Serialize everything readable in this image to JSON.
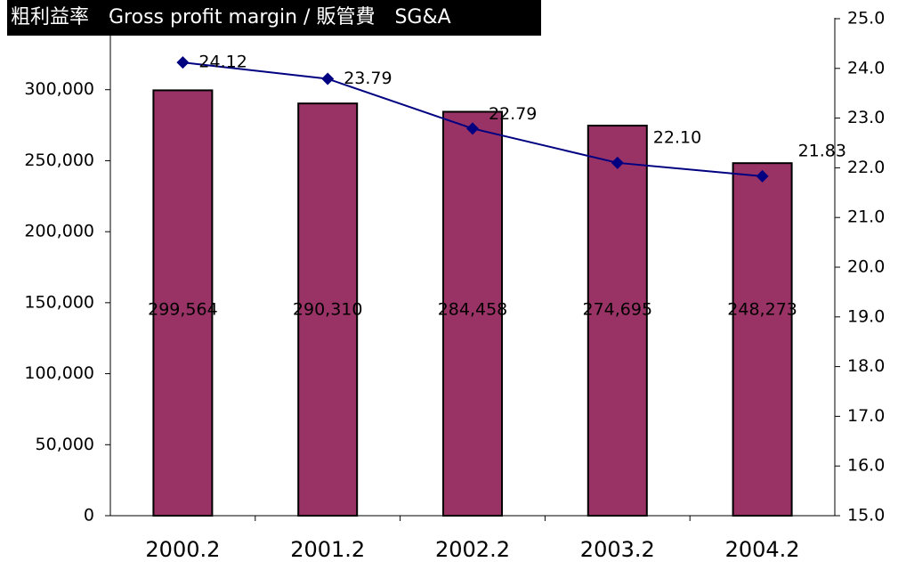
{
  "chart_data": {
    "type": "bar",
    "title": "粗利益率　Gross profit margin / 販管費　SG&A",
    "categories": [
      "2000.2",
      "2001.2",
      "2002.2",
      "2003.2",
      "2004.2"
    ],
    "series": [
      {
        "type": "bar",
        "color": "#993366",
        "values": [
          299564,
          290310,
          284458,
          274695,
          248273
        ],
        "value_labels": [
          "299,564",
          "290,310",
          "284,458",
          "274,695",
          "248,273"
        ]
      },
      {
        "type": "line",
        "axis": "y2",
        "color": "#000080",
        "values": [
          24.12,
          23.79,
          22.79,
          22.1,
          21.83
        ],
        "value_labels": [
          "24.12",
          "23.79",
          "22.79",
          "22.10",
          "21.83"
        ]
      }
    ],
    "ylim": [
      0,
      350000
    ],
    "yticks": [
      0,
      {
        "value": 50000,
        "label": "50,000"
      },
      {
        "value": 100000,
        "label": "100,000"
      },
      {
        "value": 150000,
        "label": "150,000"
      },
      {
        "value": 200000,
        "label": "200,000"
      },
      {
        "value": 250000,
        "label": "250,000"
      },
      {
        "value": 300000,
        "label": "300,000"
      }
    ],
    "y2lim": [
      15,
      25
    ],
    "y2ticks": [
      {
        "value": 15,
        "label": "15.0"
      },
      {
        "value": 16,
        "label": "16.0"
      },
      {
        "value": 17,
        "label": "17.0"
      },
      {
        "value": 18,
        "label": "18.0"
      },
      {
        "value": 19,
        "label": "19.0"
      },
      {
        "value": 20,
        "label": "20.0"
      },
      {
        "value": 21,
        "label": "21.0"
      },
      {
        "value": 22,
        "label": "22.0"
      },
      {
        "value": 23,
        "label": "23.0"
      },
      {
        "value": 24,
        "label": "24.0"
      },
      {
        "value": 25,
        "label": "25.0"
      }
    ]
  }
}
